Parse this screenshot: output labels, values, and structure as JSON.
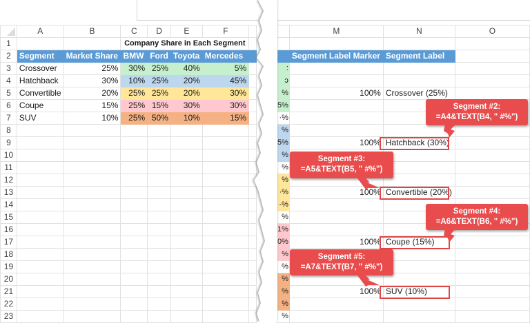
{
  "formula_bar": {
    "value": ""
  },
  "left_sheet": {
    "columns": [
      "A",
      "B",
      "C",
      "D",
      "E",
      "F"
    ],
    "row_numbers": [
      "1",
      "2",
      "3",
      "4",
      "5",
      "6",
      "7",
      "8",
      "9",
      "10",
      "11",
      "12",
      "13",
      "14",
      "15",
      "16",
      "17",
      "18",
      "19",
      "20",
      "21",
      "22",
      "23"
    ],
    "title": "Company Share in Each Segment",
    "headers": [
      "Segment",
      "Market Share",
      "BMW",
      "Ford",
      "Toyota",
      "Mercedes"
    ],
    "rows": [
      {
        "segment": "Crossover",
        "market_share": "25%",
        "bmw": "30%",
        "ford": "25%",
        "toyota": "40%",
        "mercedes": "5%",
        "color": "#c6efce"
      },
      {
        "segment": "Hatchback",
        "market_share": "30%",
        "bmw": "10%",
        "ford": "25%",
        "toyota": "20%",
        "mercedes": "45%",
        "color": "#bdd7ee"
      },
      {
        "segment": "Convertible",
        "market_share": "20%",
        "bmw": "25%",
        "ford": "25%",
        "toyota": "20%",
        "mercedes": "30%",
        "color": "#ffe699"
      },
      {
        "segment": "Coupe",
        "market_share": "15%",
        "bmw": "25%",
        "ford": "15%",
        "toyota": "30%",
        "mercedes": "30%",
        "color": "#ffc7ce"
      },
      {
        "segment": "SUV",
        "market_share": "10%",
        "bmw": "25%",
        "ford": "50%",
        "toyota": "10%",
        "mercedes": "15%",
        "color": "#f4b183"
      }
    ]
  },
  "right_sheet": {
    "columns": [
      "M",
      "N",
      "O"
    ],
    "headers": [
      "Segment Label Marker",
      "Segment Label"
    ],
    "partial_column_values": [
      "",
      "",
      ":",
      "ɔ",
      "%",
      "5%",
      "·%",
      "%",
      "5%",
      "%",
      "%",
      "%",
      "·%",
      "-%",
      "%",
      "1%",
      "0%",
      "%",
      "%",
      "%",
      "%",
      "%",
      "%"
    ],
    "entries": [
      {
        "row": 5,
        "marker": "100%",
        "label": "Crossover (25%)"
      },
      {
        "row": 9,
        "marker": "100%",
        "label": "Hatchback (30%)"
      },
      {
        "row": 13,
        "marker": "100%",
        "label": "Convertible (20%)"
      },
      {
        "row": 17,
        "marker": "100%",
        "label": "Coupe (15%)"
      },
      {
        "row": 21,
        "marker": "100%",
        "label": "SUV (10%)"
      }
    ]
  },
  "callouts": [
    {
      "title": "Segment #2:",
      "formula": "=A4&TEXT(B4, \" #%\")"
    },
    {
      "title": "Segment #3:",
      "formula": "=A5&TEXT(B5, \" #%\")"
    },
    {
      "title": "Segment #4:",
      "formula": "=A6&TEXT(B6, \" #%\")"
    },
    {
      "title": "Segment #5:",
      "formula": "=A7&TEXT(B7, \" #%\")"
    }
  ],
  "colors": {
    "header_blue": "#5b9bd5",
    "callout_red": "#e84c4c",
    "crossover": "#c6efce",
    "hatchback": "#bdd7ee",
    "convertible": "#ffe699",
    "coupe": "#ffc7ce",
    "suv": "#f4b183"
  }
}
